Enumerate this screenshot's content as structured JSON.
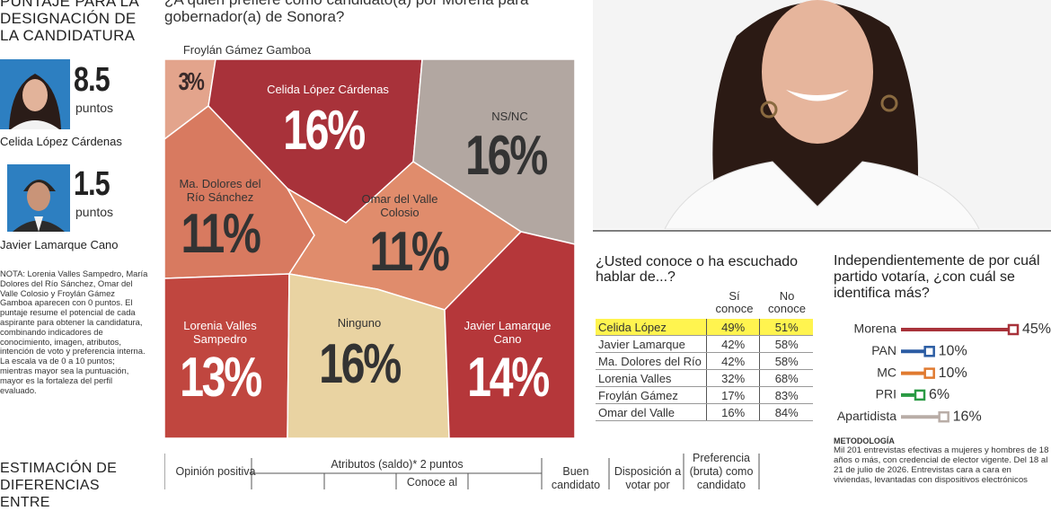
{
  "left": {
    "title_lines": [
      "PUNTAJE PARA LA",
      "DESIGNACIÓN DE",
      "LA CANDIDATURA"
    ],
    "candidates": [
      {
        "score": 8.5,
        "unit": "puntos",
        "name": "Celida López Cárdenas"
      },
      {
        "score": 1.5,
        "unit": "puntos",
        "name": "Javier Lamarque Cano"
      }
    ],
    "note": "NOTA: Lorenia Valles Sampedro, María Dolores del Río Sánchez, Omar del Valle Colosio y Froylán Gámez Gamboa aparecen con 0 puntos. El puntaje resume el potencial de cada aspirante para obtener la candidatura, combinando indicadores de conocimiento, imagen, atributos, intención de voto y preferencia interna. La escala va de 0 a 10 puntos; mientras mayor sea la puntuación, mayor es la fortaleza del perfil evaluado.",
    "next_title_lines": [
      "ESTIMACIÓN DE",
      "DIFERENCIAS ENTRE"
    ]
  },
  "chart_data": [
    {
      "type": "voronoi",
      "title": "¿A quién prefiere como candidato(a) por Morena para gobernador(a) de Sonora?",
      "categories": [
        "Froylán Gámez Gamboa",
        "Celida López Cárdenas",
        "NS/NC",
        "Ma. Dolores del Río Sánchez",
        "Omar del Valle Colosio",
        "Lorenia Valles Sampedro",
        "Ninguno",
        "Javier Lamarque Cano"
      ],
      "values": [
        3,
        16,
        16,
        11,
        11,
        13,
        16,
        14
      ],
      "value_labels": [
        "3%",
        "16%",
        "16%",
        "11%",
        "11%",
        "13%",
        "16%",
        "14%"
      ],
      "colors": [
        "#e3a48c",
        "#a8323a",
        "#b2a7a1",
        "#d87a60",
        "#e08c6c",
        "#c0463f",
        "#e9d3a2",
        "#b5373a"
      ]
    },
    {
      "type": "bar",
      "orientation": "horizontal",
      "title": "Independientemente de por cuál partido votaría, ¿con cuál se identifica más?",
      "categories": [
        "Morena",
        "PAN",
        "MC",
        "PRI",
        "Apartidista"
      ],
      "values": [
        45,
        10,
        10,
        6,
        16
      ],
      "value_labels": [
        "45%",
        "10%",
        "10%",
        "6%",
        "16%"
      ],
      "colors": [
        "#a8323a",
        "#2b5ca3",
        "#e07a30",
        "#2a9a44",
        "#b9ada7"
      ]
    }
  ],
  "known_table": {
    "title": "¿Usted conoce o ha escuchado hablar de...?",
    "headers": [
      "Sí conoce",
      "No conoce"
    ],
    "rows": [
      [
        "Celida López",
        "49%",
        "51%"
      ],
      [
        "Javier Lamarque",
        "42%",
        "58%"
      ],
      [
        "Ma. Dolores del Río",
        "42%",
        "58%"
      ],
      [
        "Lorenia Valles",
        "32%",
        "68%"
      ],
      [
        "Froylán Gámez",
        "17%",
        "83%"
      ],
      [
        "Omar del Valle",
        "16%",
        "84%"
      ]
    ]
  },
  "methodology": {
    "title": "METODOLOGÍA",
    "text": "Mil 201 entrevistas efectivas a mujeres y hombres de 18 años o más, con credencial de elector vigente. Del 18 al 21 de julio de 2026. Entrevistas cara a cara en viviendas, levantadas con dispositivos electrónicos"
  },
  "bottom_table": {
    "headers": [
      "Opinión positiva",
      "Atributos (saldo)* 2 puntos",
      "Conoce al",
      "Buen candidato",
      "Disposición a votar por",
      "Preferencia (bruta) como candidato"
    ]
  }
}
